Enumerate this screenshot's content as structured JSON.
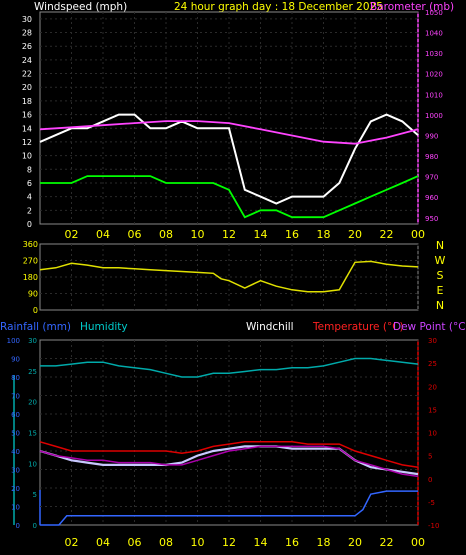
{
  "chart_data": [
    {
      "type": "line",
      "title": "24 hour graph day : 18 December 2025",
      "left_label": "Windspeed (mph)",
      "right_label": "Barometer (mb)",
      "y_ticks": [
        0,
        2,
        4,
        6,
        8,
        10,
        12,
        14,
        16,
        18,
        20,
        22,
        24,
        26,
        28,
        30
      ],
      "y2_ticks": [
        950,
        960,
        970,
        980,
        990,
        1000,
        1010,
        1020,
        1030,
        1040,
        1050
      ],
      "x_ticks": [
        "02",
        "04",
        "06",
        "08",
        "10",
        "12",
        "14",
        "16",
        "18",
        "20",
        "22",
        "00"
      ],
      "ylim": [
        0,
        31
      ],
      "y2lim": [
        947,
        1050
      ],
      "colors": {
        "gust": "#ffffff",
        "avg": "#00ff00",
        "baro": "#ff44ff"
      },
      "series": [
        {
          "key": "gust",
          "x": [
            0,
            1,
            2,
            3,
            4,
            5,
            6,
            7,
            8,
            9,
            10,
            11,
            12,
            13,
            14,
            15,
            16,
            17,
            18,
            19,
            20,
            21,
            22,
            23,
            24
          ],
          "values": [
            12,
            13,
            14,
            14,
            15,
            16,
            16,
            14,
            14,
            15,
            14,
            14,
            14,
            5,
            4,
            3,
            4,
            4,
            4,
            6,
            11,
            15,
            16,
            15,
            13
          ]
        },
        {
          "key": "avg",
          "x": [
            0,
            1,
            2,
            3,
            4,
            5,
            6,
            7,
            8,
            9,
            10,
            11,
            12,
            13,
            14,
            15,
            16,
            17,
            18,
            19,
            20,
            21,
            22,
            23,
            24
          ],
          "values": [
            6,
            6,
            6,
            7,
            7,
            7,
            7,
            7,
            6,
            6,
            6,
            6,
            5,
            1,
            2,
            2,
            1,
            1,
            1,
            2,
            3,
            4,
            5,
            6,
            7
          ]
        },
        {
          "key": "baro",
          "x": [
            0,
            2,
            4,
            6,
            8,
            10,
            12,
            14,
            16,
            18,
            20,
            22,
            24
          ],
          "values": [
            993,
            994,
            995,
            996,
            997,
            997,
            996,
            993,
            990,
            987,
            986,
            989,
            993
          ]
        }
      ]
    },
    {
      "type": "line",
      "y_ticks": [
        0,
        90,
        180,
        270,
        360
      ],
      "dir_labels": [
        "N",
        "W",
        "S",
        "E",
        "N"
      ],
      "ylim": [
        0,
        360
      ],
      "colors": {
        "dir": "#e0e000"
      },
      "series": [
        {
          "key": "dir",
          "x": [
            0,
            1,
            2,
            3,
            4,
            5,
            6,
            7,
            8,
            9,
            10,
            11,
            11.5,
            12,
            13,
            14,
            15,
            16,
            17,
            18,
            19,
            20,
            21,
            22,
            23,
            24
          ],
          "values": [
            220,
            230,
            255,
            245,
            230,
            230,
            225,
            220,
            215,
            210,
            205,
            200,
            170,
            160,
            120,
            160,
            130,
            110,
            100,
            100,
            110,
            260,
            265,
            250,
            240,
            235
          ]
        }
      ]
    },
    {
      "type": "line",
      "labels": {
        "rainfall": "Rainfall (mm)",
        "humidity": "Humidity",
        "windchill": "Windchill",
        "temperature": "Temperature (°C)",
        "dewpoint": "Dew Point (°C)"
      },
      "y_left_outer_ticks": [
        0,
        10,
        20,
        30,
        40,
        50,
        60,
        70,
        80,
        90,
        100
      ],
      "y_left_inner_ticks": [
        0,
        5,
        10,
        15,
        20,
        25,
        30
      ],
      "y_right_ticks": [
        -10,
        -5,
        0,
        5,
        10,
        15,
        20,
        25,
        30
      ],
      "x_ticks": [
        "02",
        "04",
        "06",
        "08",
        "10",
        "12",
        "14",
        "16",
        "18",
        "20",
        "22",
        "00"
      ],
      "colors": {
        "rain": "#3366ff",
        "humidity": "#00aaaa",
        "windchill": "#c8c8ff",
        "temp": "#dd0000",
        "dew": "#aa00aa"
      },
      "series": [
        {
          "key": "humidity",
          "x": [
            0,
            1,
            2,
            3,
            4,
            5,
            6,
            7,
            8,
            9,
            10,
            11,
            12,
            13,
            14,
            15,
            16,
            17,
            18,
            19,
            20,
            21,
            22,
            23,
            24
          ],
          "values": [
            86,
            86,
            87,
            88,
            88,
            86,
            85,
            84,
            82,
            80,
            80,
            82,
            82,
            83,
            84,
            84,
            85,
            85,
            86,
            88,
            90,
            90,
            89,
            88,
            87
          ]
        },
        {
          "key": "temp",
          "x": [
            0,
            1,
            2,
            3,
            4,
            5,
            6,
            7,
            8,
            9,
            10,
            11,
            12,
            13,
            14,
            15,
            16,
            17,
            18,
            19,
            20,
            21,
            22,
            23,
            24
          ],
          "values": [
            8,
            7,
            6,
            6,
            6,
            6,
            6,
            6,
            6,
            5.5,
            6,
            7,
            7.5,
            8,
            8,
            8,
            8,
            7.5,
            7.5,
            7.5,
            6,
            5,
            4,
            3,
            2.5
          ]
        },
        {
          "key": "windchill",
          "x": [
            0,
            1,
            2,
            3,
            4,
            5,
            6,
            7,
            8,
            9,
            10,
            11,
            12,
            13,
            14,
            15,
            16,
            17,
            18,
            19,
            20,
            21,
            22,
            23,
            24
          ],
          "values": [
            6,
            5,
            4,
            3.5,
            3,
            3,
            3,
            3,
            3,
            3.5,
            5,
            6,
            6.5,
            7,
            7,
            7,
            6.5,
            6.5,
            6.5,
            6.5,
            4,
            2.5,
            2,
            1.5,
            1
          ]
        },
        {
          "key": "dew",
          "x": [
            0,
            1,
            2,
            3,
            4,
            5,
            6,
            7,
            8,
            9,
            10,
            11,
            12,
            13,
            14,
            15,
            16,
            17,
            18,
            19,
            20,
            21,
            22,
            23,
            24
          ],
          "values": [
            6,
            5,
            4.5,
            4,
            4,
            3.5,
            3.5,
            3.5,
            3,
            3,
            4,
            5,
            6,
            6.5,
            7,
            7,
            7,
            7,
            7,
            6.5,
            4,
            3,
            2,
            1,
            0.5
          ]
        },
        {
          "key": "rain",
          "x": [
            0,
            1.2,
            1.7,
            20,
            20.5,
            21,
            22,
            23,
            24
          ],
          "values": [
            0,
            0,
            1.5,
            1.5,
            2.5,
            5,
            5.5,
            5.5,
            5.5
          ]
        }
      ]
    }
  ]
}
